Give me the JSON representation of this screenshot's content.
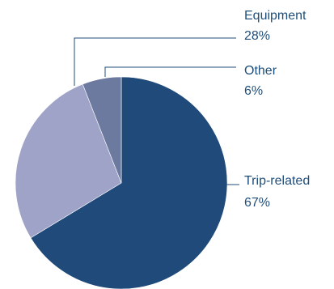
{
  "chart_data": {
    "type": "pie",
    "title": "",
    "slices": [
      {
        "label": "Trip-related",
        "value": 67,
        "value_label": "67%",
        "color": "#1f4a7a"
      },
      {
        "label": "Equipment",
        "value": 28,
        "value_label": "28%",
        "color": "#9fa3c8"
      },
      {
        "label": "Other",
        "value": 6,
        "value_label": "6%",
        "color": "#6d7aa0"
      }
    ],
    "start_angle_deg": 0,
    "direction": "clockwise",
    "legend": "none",
    "label_color": "#1f4e79",
    "slice_border_color": "#ffffff"
  }
}
